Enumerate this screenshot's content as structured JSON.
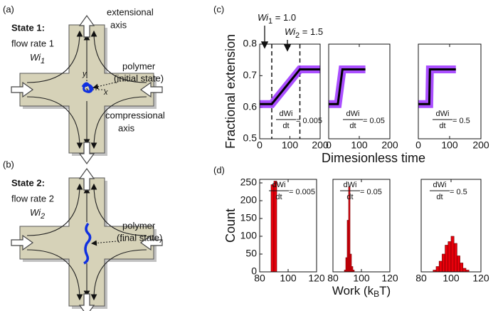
{
  "panel_a": {
    "label": "(a)",
    "state": "State 1:",
    "flow": "flow rate 1",
    "wi": [
      "Wi",
      "1"
    ],
    "ext": [
      "extensional",
      "axis"
    ],
    "polymer": [
      "polymer",
      "(initial state)"
    ],
    "comp": [
      "compressional",
      "axis"
    ],
    "y": "y",
    "x": "x"
  },
  "panel_b": {
    "label": "(b)",
    "state": "State 2:",
    "flow": "flow rate 2",
    "wi": [
      "Wi",
      "2"
    ],
    "polymer": [
      "polymer",
      "(final state)"
    ]
  },
  "panel_c": {
    "label": "(c)"
  },
  "panel_d": {
    "label": "(d)"
  },
  "chart_data": [
    {
      "type": "line",
      "y_label": "Fractional extension",
      "x": [
        0,
        40,
        133,
        200
      ],
      "series": [
        {
          "color": "#9b30ff",
          "values": [
            0.61,
            0.61,
            0.72,
            0.72
          ]
        },
        {
          "color": "#000000",
          "values": [
            0.61,
            0.61,
            0.72,
            0.72
          ]
        }
      ],
      "xlim": [
        0,
        200
      ],
      "ylim": [
        0.5,
        0.8
      ],
      "xticks": [
        0,
        100,
        200
      ],
      "yticks": [
        0.5,
        0.6,
        0.7,
        0.8
      ],
      "vlines": [
        40,
        133
      ],
      "annotations": [
        [
          "Wi",
          "1",
          " = 1.0"
        ],
        [
          "Wi",
          "2",
          " = 1.5"
        ]
      ],
      "fraction": [
        "dWi",
        "dt",
        " = 0.005"
      ]
    },
    {
      "type": "line",
      "x_label": "Dimesionless time",
      "x": [
        0,
        30,
        45,
        120
      ],
      "series": [
        {
          "color": "#9b30ff",
          "values": [
            0.61,
            0.61,
            0.72,
            0.72
          ]
        },
        {
          "color": "#000000",
          "values": [
            0.61,
            0.61,
            0.72,
            0.72
          ]
        }
      ],
      "xlim": [
        0,
        200
      ],
      "ylim": [
        0.5,
        0.8
      ],
      "xticks": [
        0,
        100,
        200
      ],
      "fraction": [
        "dWi",
        "dt",
        " = 0.05"
      ]
    },
    {
      "type": "line",
      "x": [
        0,
        35,
        37,
        120
      ],
      "series": [
        {
          "color": "#9b30ff",
          "values": [
            0.61,
            0.61,
            0.72,
            0.72
          ]
        },
        {
          "color": "#000000",
          "values": [
            0.61,
            0.61,
            0.72,
            0.72
          ]
        }
      ],
      "xlim": [
        0,
        200
      ],
      "ylim": [
        0.5,
        0.8
      ],
      "xticks": [
        0,
        100,
        200
      ],
      "fraction": [
        "dWi",
        "dt",
        " = 0.5"
      ]
    },
    {
      "type": "histogram",
      "y_label": "Count",
      "bins": [
        88,
        90,
        92
      ],
      "values": [
        245,
        255
      ],
      "color": "#e8000b",
      "xlim": [
        80,
        120
      ],
      "ylim": [
        0,
        260
      ],
      "xticks": [
        80,
        100,
        120
      ],
      "yticks": [
        0,
        50,
        100,
        150,
        200,
        250
      ],
      "fraction": [
        "dWi",
        "dt",
        " = 0.005"
      ]
    },
    {
      "type": "histogram",
      "x_label": [
        "Work (k",
        "B",
        "T)"
      ],
      "bins": [
        88,
        89,
        90,
        91,
        92,
        93,
        94,
        95
      ],
      "values": [
        5,
        40,
        145,
        240,
        50,
        15,
        5
      ],
      "color": "#e8000b",
      "xlim": [
        80,
        120
      ],
      "ylim": [
        0,
        260
      ],
      "xticks": [
        80,
        100,
        120
      ],
      "fraction": [
        "dWi",
        "dt",
        " = 0.05"
      ]
    },
    {
      "type": "histogram",
      "bins": [
        88,
        90,
        92,
        94,
        96,
        98,
        100,
        102,
        104,
        106,
        108,
        110,
        112
      ],
      "values": [
        5,
        15,
        30,
        50,
        75,
        85,
        100,
        80,
        45,
        25,
        10,
        5
      ],
      "color": "#e8000b",
      "xlim": [
        80,
        120
      ],
      "ylim": [
        0,
        260
      ],
      "xticks": [
        80,
        100,
        120
      ],
      "fraction": [
        "dWi",
        "dt",
        " = 0.5"
      ]
    }
  ]
}
